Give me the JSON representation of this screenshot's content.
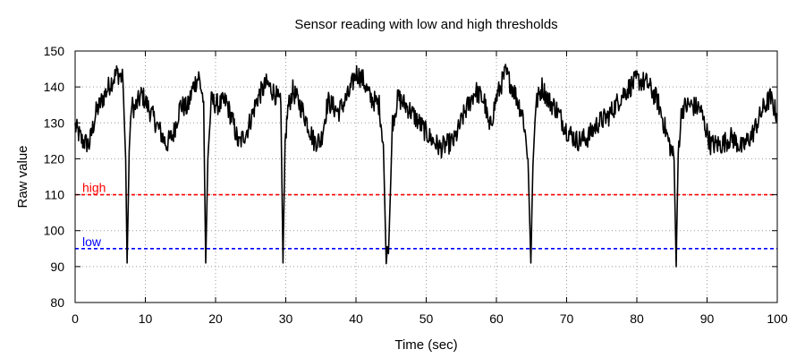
{
  "chart_data": {
    "type": "line",
    "title": "Sensor reading with low and high thresholds",
    "xlabel": "Time (sec)",
    "ylabel": "Raw value",
    "xlim": [
      0,
      100
    ],
    "ylim": [
      80,
      150
    ],
    "xticks": [
      0,
      10,
      20,
      30,
      40,
      50,
      60,
      70,
      80,
      90,
      100
    ],
    "yticks": [
      80,
      90,
      100,
      110,
      120,
      130,
      140,
      150
    ],
    "grid": true,
    "series": [
      {
        "color": "#000000",
        "x": [
          0,
          1,
          2,
          3,
          4,
          5,
          6,
          6.8,
          7.2,
          7.4,
          7.7,
          8,
          8.5,
          9.5,
          11,
          13,
          14,
          15,
          16,
          16.8,
          17.6,
          18.3,
          18.6,
          18.9,
          19.4,
          20.5,
          21.5,
          22.5,
          23.3,
          24.5,
          26,
          27.3,
          28.5,
          29.3,
          29.6,
          29.9,
          30.3,
          31,
          32.5,
          34,
          35,
          36,
          37.5,
          39,
          40,
          41,
          42,
          43.3,
          43.9,
          44.3,
          44.7,
          45.2,
          46,
          47.5,
          49,
          50.5,
          52,
          54,
          55.5,
          57,
          58.3,
          59,
          60,
          61.3,
          62.5,
          63.8,
          64.5,
          64.9,
          65.2,
          65.6,
          66.5,
          67.5,
          68.5,
          70,
          71.5,
          73,
          74.5,
          76,
          78,
          80,
          81.5,
          83,
          84.5,
          85.3,
          85.6,
          85.9,
          86.4,
          87.5,
          89,
          90.5,
          92,
          93.5,
          95,
          96.5,
          98,
          99,
          100
        ],
        "y": [
          129,
          125,
          124,
          133,
          137,
          141,
          144,
          142,
          120,
          91,
          122,
          135,
          134,
          138,
          132,
          124,
          127,
          135,
          134,
          140,
          143,
          136,
          91,
          120,
          136,
          135,
          136,
          130,
          124,
          128,
          137,
          141,
          138,
          135,
          91,
          124,
          134,
          139,
          133,
          125,
          125,
          136,
          133,
          138,
          144,
          142,
          137,
          135,
          124,
          91,
          98,
          130,
          137,
          134,
          130,
          126,
          123,
          125,
          133,
          139,
          136,
          128,
          137,
          144,
          139,
          132,
          120,
          91,
          118,
          135,
          140,
          136,
          134,
          128,
          125,
          126,
          130,
          132,
          138,
          142,
          141,
          136,
          125,
          120,
          90,
          122,
          134,
          135,
          134,
          124,
          124,
          126,
          123,
          127,
          134,
          137,
          132
        ]
      }
    ],
    "thresholds": [
      {
        "label": "high",
        "value": 110,
        "color": "#ff0000"
      },
      {
        "label": "low",
        "value": 95,
        "color": "#0000ff"
      }
    ]
  }
}
